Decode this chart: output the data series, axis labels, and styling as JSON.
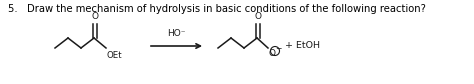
{
  "title_text": "5.   Draw the mechanism of hydrolysis in basic conditions of the following reaction?",
  "title_fontsize": 7.2,
  "background_color": "#ffffff",
  "figsize": [
    4.74,
    0.84
  ],
  "dpi": 100,
  "arrow_label": "HO⁻",
  "product_label": "+ EtOH",
  "reagent_fontsize": 6.5,
  "product_fontsize": 6.8,
  "line_color": "#1a1a1a",
  "lw": 1.1
}
